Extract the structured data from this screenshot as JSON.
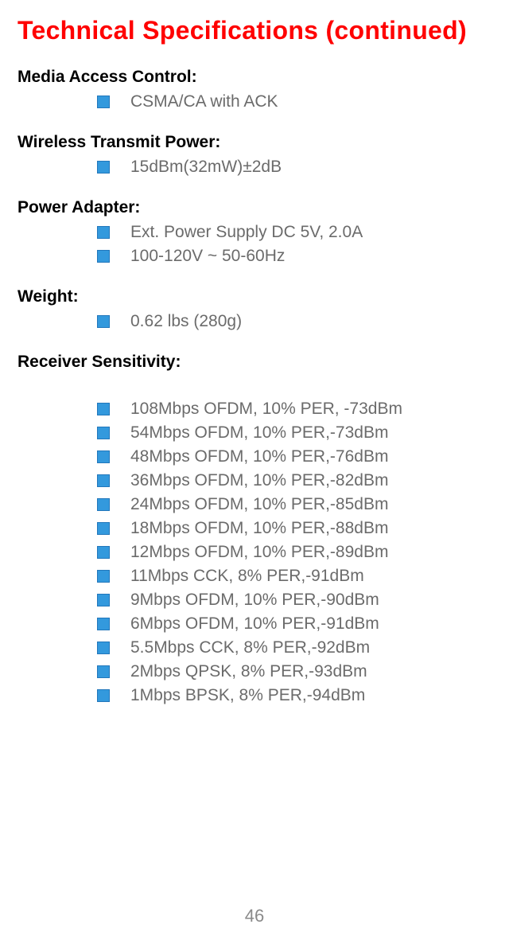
{
  "title": "Technical Specifications (continued)",
  "pageNumber": "46",
  "colors": {
    "title": "#ff0000",
    "heading": "#000000",
    "body": "#6b6b6b",
    "bulletFill": "#3399dd",
    "bulletBorder": "#2277bb",
    "pageNum": "#8a8a8a",
    "background": "#ffffff"
  },
  "sections": [
    {
      "heading": "Media Access Control:",
      "items": [
        "CSMA/CA with ACK"
      ]
    },
    {
      "heading": "Wireless Transmit Power:",
      "items": [
        "15dBm(32mW)±2dB"
      ]
    },
    {
      "heading": "Power Adapter:",
      "items": [
        "Ext. Power Supply DC 5V, 2.0A",
        "100-120V ~ 50-60Hz"
      ]
    },
    {
      "heading": "Weight:",
      "items": [
        "0.62 lbs (280g)"
      ]
    },
    {
      "heading": "Receiver Sensitivity:",
      "gap": true,
      "items": [
        "108Mbps OFDM, 10% PER, -73dBm",
        "54Mbps OFDM, 10% PER,-73dBm",
        "48Mbps OFDM, 10% PER,-76dBm",
        "36Mbps OFDM, 10% PER,-82dBm",
        "24Mbps OFDM, 10% PER,-85dBm",
        "18Mbps OFDM, 10% PER,-88dBm",
        "12Mbps OFDM, 10% PER,-89dBm",
        "11Mbps CCK, 8% PER,-91dBm",
        "9Mbps OFDM, 10% PER,-90dBm",
        "6Mbps OFDM, 10% PER,-91dBm",
        "5.5Mbps CCK, 8% PER,-92dBm",
        "2Mbps QPSK, 8% PER,-93dBm",
        "1Mbps BPSK, 8% PER,-94dBm"
      ]
    }
  ]
}
